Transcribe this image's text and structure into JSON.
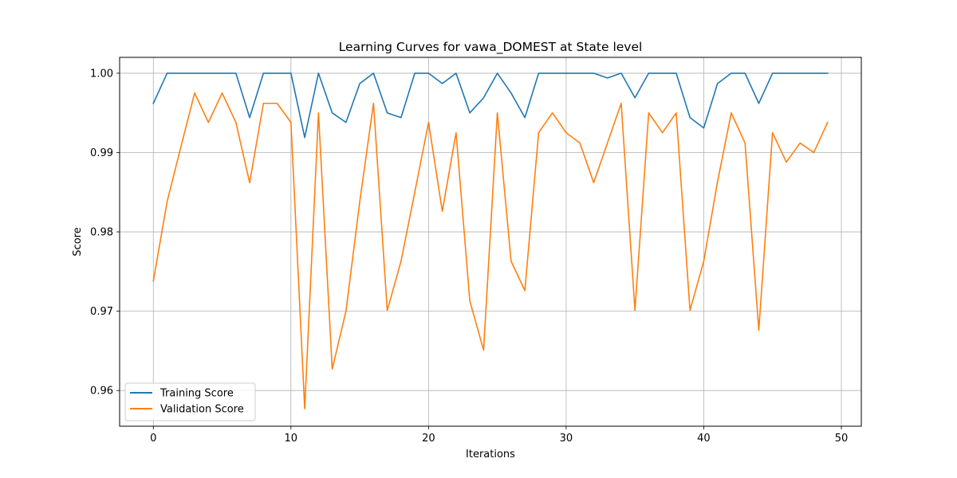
{
  "chart_data": {
    "type": "line",
    "title": "Learning Curves for vawa_DOMEST at State level",
    "xlabel": "Iterations",
    "ylabel": "Score",
    "xlim": [
      -2.45,
      51.45
    ],
    "ylim": [
      0.9555,
      1.002
    ],
    "xticks": [
      0,
      10,
      20,
      30,
      40,
      50
    ],
    "yticks": [
      0.96,
      0.97,
      0.98,
      0.99,
      1.0
    ],
    "ytick_labels": [
      "0.96",
      "0.97",
      "0.98",
      "0.99",
      "1.00"
    ],
    "grid": true,
    "legend_position": "lower-left",
    "x": [
      0,
      1,
      2,
      3,
      4,
      5,
      6,
      7,
      8,
      9,
      10,
      11,
      12,
      13,
      14,
      15,
      16,
      17,
      18,
      19,
      20,
      21,
      22,
      23,
      24,
      25,
      26,
      27,
      28,
      29,
      30,
      31,
      32,
      33,
      34,
      35,
      36,
      37,
      38,
      39,
      40,
      41,
      42,
      43,
      44,
      45,
      46,
      47,
      48,
      49
    ],
    "series": [
      {
        "name": "Training Score",
        "color": "#1f77b4",
        "values": [
          0.9962,
          1.0,
          1.0,
          1.0,
          1.0,
          1.0,
          1.0,
          0.9944,
          1.0,
          1.0,
          1.0,
          0.9919,
          1.0,
          0.995,
          0.9938,
          0.9987,
          1.0,
          0.995,
          0.9944,
          1.0,
          1.0,
          0.9987,
          1.0,
          0.995,
          0.9969,
          1.0,
          0.9975,
          0.9944,
          1.0,
          1.0,
          1.0,
          1.0,
          1.0,
          0.9994,
          1.0,
          0.9969,
          1.0,
          1.0,
          1.0,
          0.9944,
          0.9931,
          0.9987,
          1.0,
          1.0,
          0.9962,
          1.0,
          1.0,
          1.0,
          1.0,
          1.0
        ]
      },
      {
        "name": "Validation Score",
        "color": "#ff7f0e",
        "values": [
          0.9738,
          0.9838,
          0.9907,
          0.9975,
          0.9938,
          0.9975,
          0.9938,
          0.9862,
          0.9962,
          0.9962,
          0.9938,
          0.9577,
          0.995,
          0.9627,
          0.97,
          0.9838,
          0.9962,
          0.9701,
          0.9763,
          0.985,
          0.9938,
          0.9826,
          0.9925,
          0.9713,
          0.9651,
          0.995,
          0.9763,
          0.9726,
          0.9925,
          0.995,
          0.9925,
          0.9912,
          0.9862,
          0.9912,
          0.9962,
          0.9701,
          0.995,
          0.9925,
          0.995,
          0.9701,
          0.9763,
          0.9863,
          0.995,
          0.9912,
          0.9676,
          0.9925,
          0.9888,
          0.9912,
          0.99,
          0.9938
        ]
      }
    ]
  }
}
